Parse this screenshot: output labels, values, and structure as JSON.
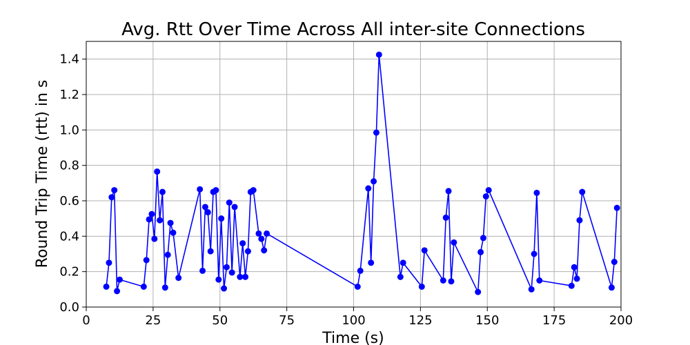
{
  "chart_data": {
    "type": "line",
    "title": "Avg. Rtt Over Time Across All inter-site Connections",
    "xlabel": "Time (s)",
    "ylabel": "Round Trip Time (rtt) in s",
    "xlim": [
      0,
      200
    ],
    "ylim": [
      0,
      1.5
    ],
    "xticks": [
      0,
      25,
      50,
      75,
      100,
      125,
      150,
      175,
      200
    ],
    "yticks": [
      0.0,
      0.2,
      0.4,
      0.6,
      0.8,
      1.0,
      1.2,
      1.4
    ],
    "xtick_labels": [
      "0",
      "25",
      "50",
      "75",
      "100",
      "125",
      "150",
      "175",
      "200"
    ],
    "ytick_labels": [
      "0.0",
      "0.2",
      "0.4",
      "0.6",
      "0.8",
      "1.0",
      "1.2",
      "1.4"
    ],
    "grid": true,
    "series": [
      {
        "color": "#0000ff",
        "marker": "circle",
        "x": [
          7.5,
          8.5,
          9.5,
          10.5,
          11.5,
          12.5,
          21.5,
          22.5,
          23.5,
          24.5,
          25.5,
          26.5,
          27.5,
          28.5,
          29.5,
          30.5,
          31.5,
          32.5,
          34.5,
          42.5,
          43.5,
          44.5,
          45.5,
          46.5,
          47.5,
          48.5,
          49.5,
          50.5,
          51.5,
          52.5,
          53.5,
          54.5,
          55.5,
          57.5,
          58.5,
          59.5,
          60.5,
          61.5,
          62.5,
          64.5,
          65.5,
          66.5,
          67.5,
          101.5,
          102.5,
          105.5,
          106.5,
          107.5,
          108.5,
          109.5,
          117.5,
          118.5,
          125.5,
          126.5,
          133.5,
          134.5,
          135.5,
          136.5,
          137.5,
          146.5,
          147.5,
          148.5,
          149.5,
          150.5,
          166.5,
          167.5,
          168.5,
          169.5,
          181.5,
          182.5,
          183.5,
          184.5,
          185.5,
          196.5,
          197.5,
          198.5
        ],
        "y": [
          0.115,
          0.25,
          0.62,
          0.66,
          0.09,
          0.155,
          0.115,
          0.265,
          0.495,
          0.525,
          0.385,
          0.765,
          0.49,
          0.65,
          0.11,
          0.295,
          0.475,
          0.42,
          0.165,
          0.665,
          0.205,
          0.565,
          0.535,
          0.315,
          0.65,
          0.66,
          0.155,
          0.5,
          0.105,
          0.225,
          0.59,
          0.195,
          0.565,
          0.17,
          0.36,
          0.17,
          0.315,
          0.65,
          0.66,
          0.415,
          0.385,
          0.32,
          0.415,
          0.115,
          0.205,
          0.67,
          0.25,
          0.71,
          0.985,
          1.425,
          0.17,
          0.25,
          0.115,
          0.32,
          0.15,
          0.505,
          0.655,
          0.145,
          0.365,
          0.085,
          0.31,
          0.39,
          0.625,
          0.66,
          0.1,
          0.3,
          0.645,
          0.15,
          0.12,
          0.225,
          0.16,
          0.49,
          0.65,
          0.11,
          0.255,
          0.56
        ]
      }
    ]
  }
}
